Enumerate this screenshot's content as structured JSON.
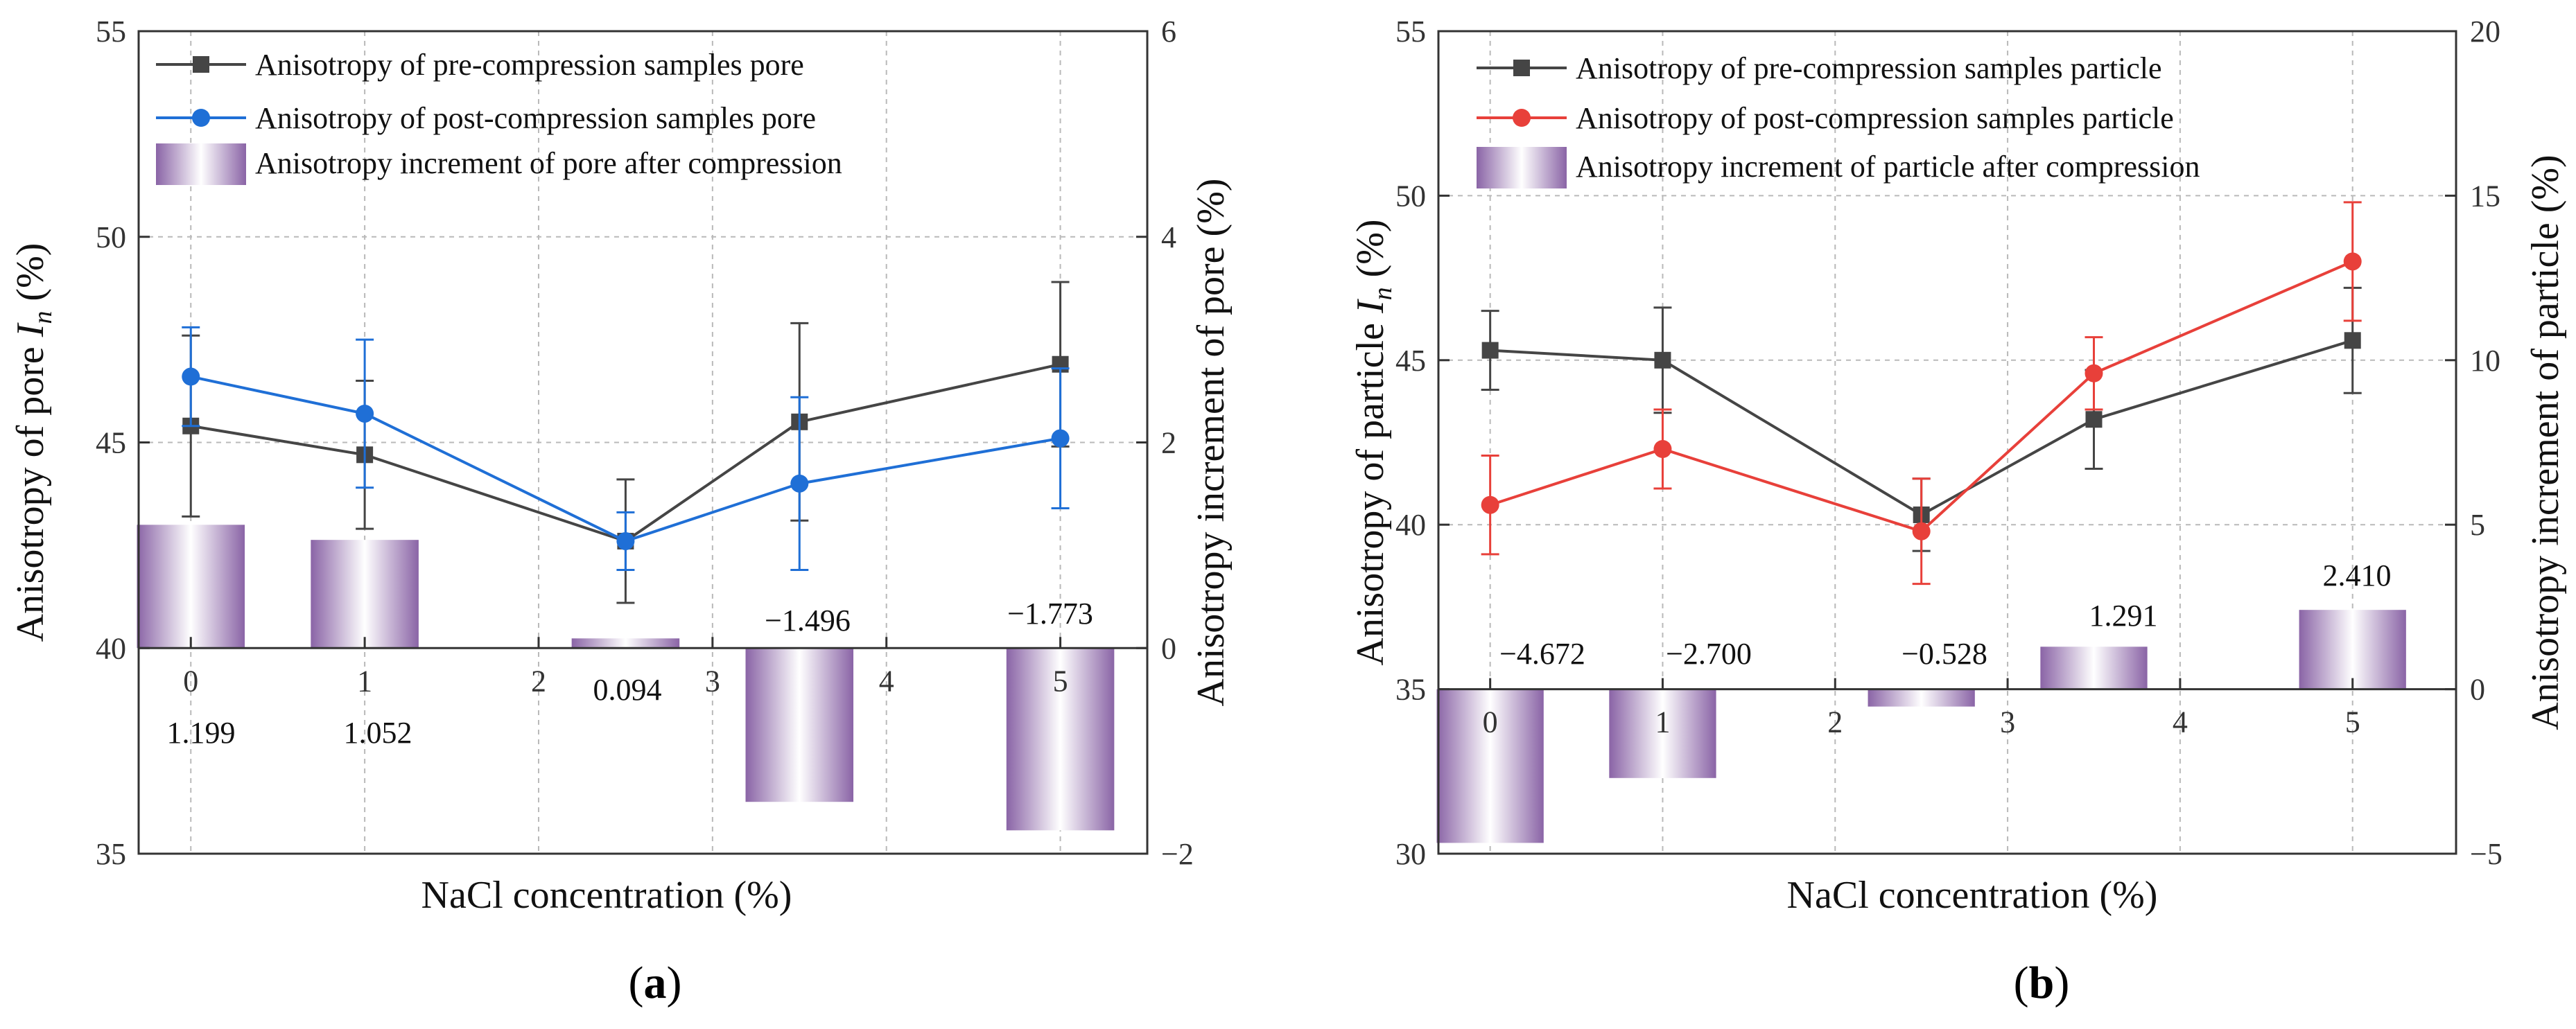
{
  "colors": {
    "pre": "#454545",
    "post_a": "#1f6fd6",
    "post_b": "#e8403a",
    "bar_dark": "#8a64a6",
    "bar_light": "#ffffff",
    "grid": "#b9b9b9",
    "axis": "#333333"
  },
  "icons": {
    "pre_marker": "square-marker",
    "post_marker": "circle-marker",
    "bar_swatch": "gradient-bar"
  },
  "chart_data": [
    {
      "id": "a",
      "type": "line",
      "caption_letter": "a",
      "xlabel": "NaCl concentration (%)",
      "ylabel_main": "Anisotropy of pore ",
      "ylabel_sym": "I",
      "ylabel_sub": "n",
      "ylabel_unit": "  (%)",
      "y2label": "Anisotropy increment of pore  (%)",
      "xlim": [
        -0.3,
        5.5
      ],
      "ylim": [
        35,
        55
      ],
      "y2lim": [
        -2,
        6
      ],
      "x_ticks": [
        0,
        1,
        2,
        3,
        4,
        5
      ],
      "y_ticks": [
        35,
        40,
        45,
        50,
        55
      ],
      "y2_ticks": [
        -2,
        0,
        2,
        4,
        6
      ],
      "grid": true,
      "legend": [
        {
          "label": "Anisotropy of pre-compression samples pore",
          "kind": "pre"
        },
        {
          "label": "Anisotropy of post-compression samples pore",
          "kind": "post"
        },
        {
          "label": "Anisotropy increment of pore after compression",
          "kind": "bar"
        }
      ],
      "series": [
        {
          "name": "pre",
          "x": [
            0,
            1,
            2.5,
            3.5,
            5
          ],
          "values": [
            45.4,
            44.7,
            42.6,
            45.5,
            46.9
          ],
          "err": [
            2.2,
            1.8,
            1.5,
            2.4,
            2.0
          ]
        },
        {
          "name": "post",
          "x": [
            0,
            1,
            2.5,
            3.5,
            5
          ],
          "values": [
            46.6,
            45.7,
            42.6,
            44.0,
            45.1
          ],
          "err": [
            1.2,
            1.8,
            0.7,
            2.1,
            1.7
          ]
        }
      ],
      "bars": {
        "x": [
          0,
          1,
          2.5,
          3.5,
          5
        ],
        "values": [
          1.199,
          1.052,
          0.094,
          -1.496,
          -1.773
        ],
        "width": 0.62
      },
      "bar_labels": [
        "1.199",
        "1.052",
        "0.094",
        "−1.496",
        "−1.773"
      ]
    },
    {
      "id": "b",
      "type": "line",
      "caption_letter": "b",
      "xlabel": "NaCl concentration (%)",
      "ylabel_main": "Anisotropy of particle ",
      "ylabel_sym": "I",
      "ylabel_sub": "n",
      "ylabel_unit": " (%)",
      "y2label": "Anisotropy increment  of particle (%)",
      "xlim": [
        -0.3,
        5.6
      ],
      "ylim": [
        30,
        55
      ],
      "y2lim": [
        -5,
        20
      ],
      "x_ticks": [
        0,
        1,
        2,
        3,
        4,
        5
      ],
      "y_ticks": [
        30,
        35,
        40,
        45,
        50,
        55
      ],
      "y2_ticks": [
        -5,
        0,
        5,
        10,
        15,
        20
      ],
      "grid": true,
      "legend": [
        {
          "label": "Anisotropy of pre-compression samples particle",
          "kind": "pre"
        },
        {
          "label": "Anisotropy of post-compression samples particle",
          "kind": "post"
        },
        {
          "label": "Anisotropy increment of particle after compression",
          "kind": "bar"
        }
      ],
      "series": [
        {
          "name": "pre",
          "x": [
            0,
            1,
            2.5,
            3.5,
            5
          ],
          "values": [
            45.3,
            45.0,
            40.3,
            43.2,
            45.6
          ],
          "err": [
            1.2,
            1.6,
            1.1,
            1.5,
            1.6
          ]
        },
        {
          "name": "post",
          "x": [
            0,
            1,
            2.5,
            3.5,
            5
          ],
          "values": [
            40.6,
            42.3,
            39.8,
            44.6,
            48.0
          ],
          "err": [
            1.5,
            1.2,
            1.6,
            1.1,
            1.8
          ]
        }
      ],
      "bars": {
        "x": [
          0,
          1,
          2.5,
          3.5,
          5
        ],
        "values": [
          -4.672,
          -2.7,
          -0.528,
          1.291,
          2.41
        ],
        "width": 0.62
      },
      "bar_labels": [
        "−4.672",
        "−2.700",
        "−0.528",
        "1.291",
        "2.410"
      ]
    }
  ]
}
